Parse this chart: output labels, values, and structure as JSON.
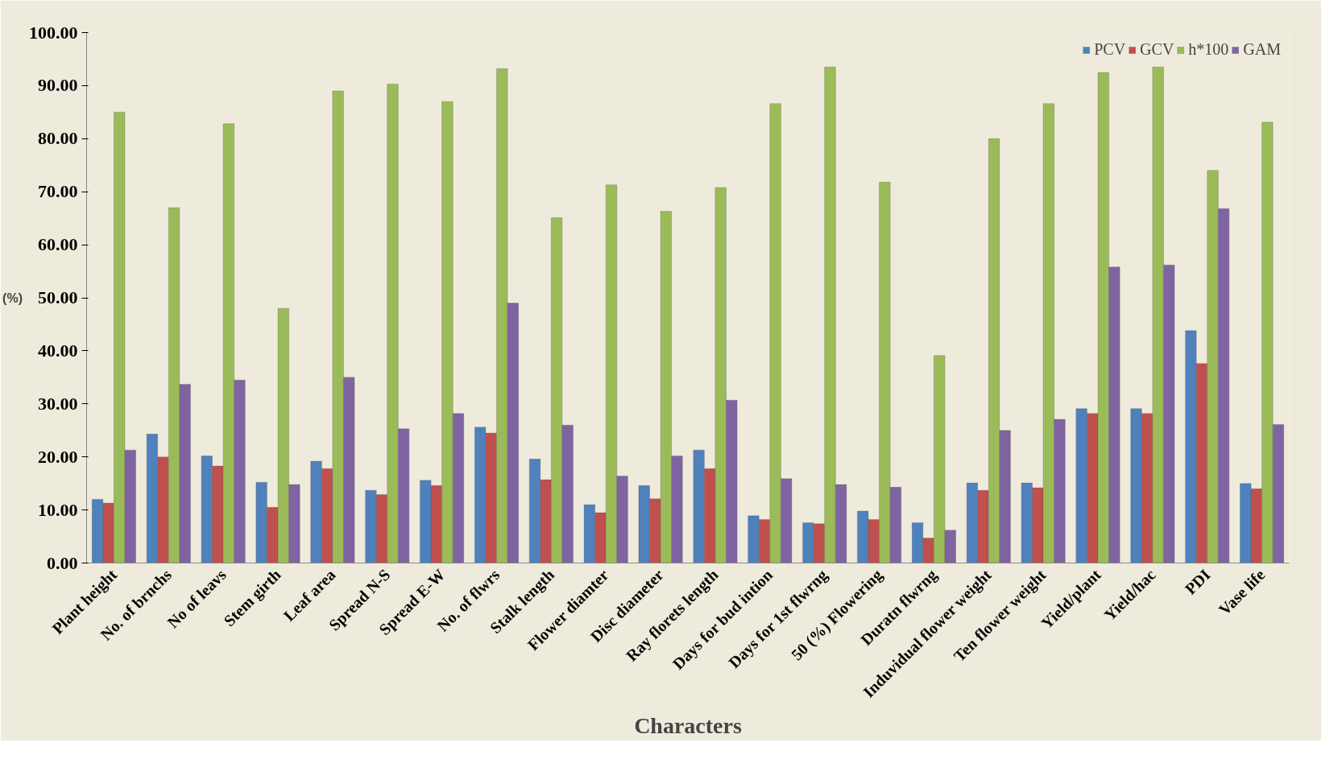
{
  "chart_data": {
    "type": "bar",
    "xlabel": "Characters",
    "ylabel": "(%)",
    "categories": [
      "Plant height",
      "No. of brnchs",
      "No of leavs",
      "Stem girth",
      "Leaf area",
      "Spread N-S",
      "Spread E-W",
      "No. of flwrs",
      "Stalk length",
      "Flower diamter",
      "Disc diameter",
      "Ray florets length",
      "Days for bud intion",
      "Days for 1st flwrng",
      "50 (%) Flowering",
      "Duratn flwrng",
      "Induvidual flower weight",
      "Ten flower weight",
      "Yield/plant",
      "Yield/hac",
      "PDI",
      "Vase life"
    ],
    "series": [
      {
        "name": "PCV",
        "color": "#4f81bd",
        "values": [
          12,
          24.3,
          20.2,
          15.2,
          19.2,
          13.7,
          15.6,
          25.6,
          19.6,
          11,
          14.6,
          21.3,
          8.9,
          7.6,
          9.8,
          7.6,
          15.1,
          15.1,
          29.1,
          29.1,
          43.8,
          15
        ]
      },
      {
        "name": "GCV",
        "color": "#c0504d",
        "values": [
          11.3,
          20,
          18.3,
          10.5,
          17.8,
          12.9,
          14.6,
          24.5,
          15.7,
          9.5,
          12.1,
          17.8,
          8.2,
          7.4,
          8.2,
          4.7,
          13.7,
          14.2,
          28.2,
          28.2,
          37.6,
          14
        ]
      },
      {
        "name": "h*100",
        "color": "#9bbb59",
        "values": [
          85,
          67,
          82.8,
          48,
          89,
          90.3,
          87,
          93.2,
          65.1,
          71.3,
          66.3,
          70.8,
          86.6,
          93.5,
          71.8,
          39.1,
          80,
          86.6,
          92.5,
          93.5,
          74,
          83.1
        ]
      },
      {
        "name": "GAM",
        "color": "#8064a2",
        "values": [
          21.3,
          33.7,
          34.5,
          14.8,
          35,
          25.3,
          28.2,
          49,
          26,
          16.4,
          20.2,
          30.7,
          15.9,
          14.8,
          14.3,
          6.2,
          25,
          27.1,
          55.8,
          56.2,
          66.8,
          26.1
        ]
      }
    ],
    "ylim": [
      0,
      100
    ],
    "yticks": [
      {
        "value": 0,
        "label": "0.00"
      },
      {
        "value": 10,
        "label": "10.00"
      },
      {
        "value": 20,
        "label": "20.00"
      },
      {
        "value": 30,
        "label": "30.00"
      },
      {
        "value": 40,
        "label": "40.00"
      },
      {
        "value": 50,
        "label": "50.00"
      },
      {
        "value": 60,
        "label": "60.00"
      },
      {
        "value": 70,
        "label": "70.00"
      },
      {
        "value": 80,
        "label": "80.00"
      },
      {
        "value": 90,
        "label": "90.00"
      },
      {
        "value": 100,
        "label": "100.00"
      }
    ],
    "grid": false,
    "legend": "top right"
  }
}
